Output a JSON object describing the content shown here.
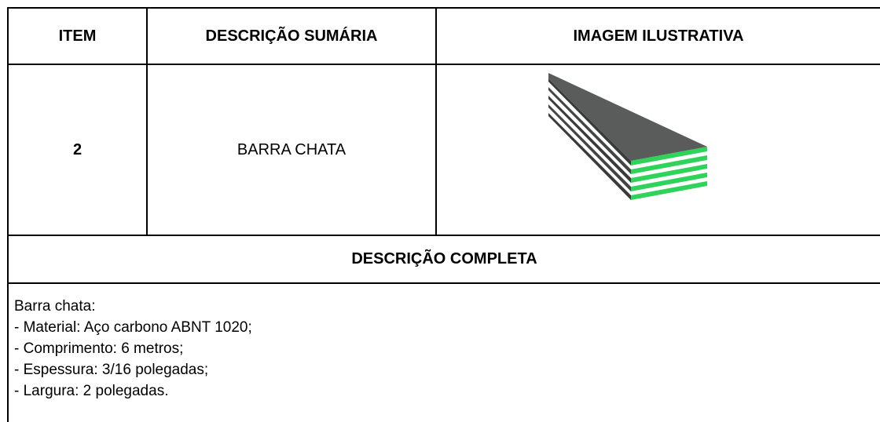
{
  "table": {
    "header": [
      "ITEM",
      "DESCRIÇÃO SUMÁRIA",
      "IMAGEM ILUSTRATIVA"
    ],
    "rows": [
      [
        "2",
        "BARRA CHATA"
      ]
    ],
    "section_title": "DESCRIÇÃO COMPLETA",
    "description": [
      "Barra chata:",
      "- Material: Aço carbono ABNT 1020;",
      "- Comprimento: 6 metros;",
      "- Espessura: 3/16 polegadas;",
      "- Largura: 2 polegadas."
    ]
  }
}
